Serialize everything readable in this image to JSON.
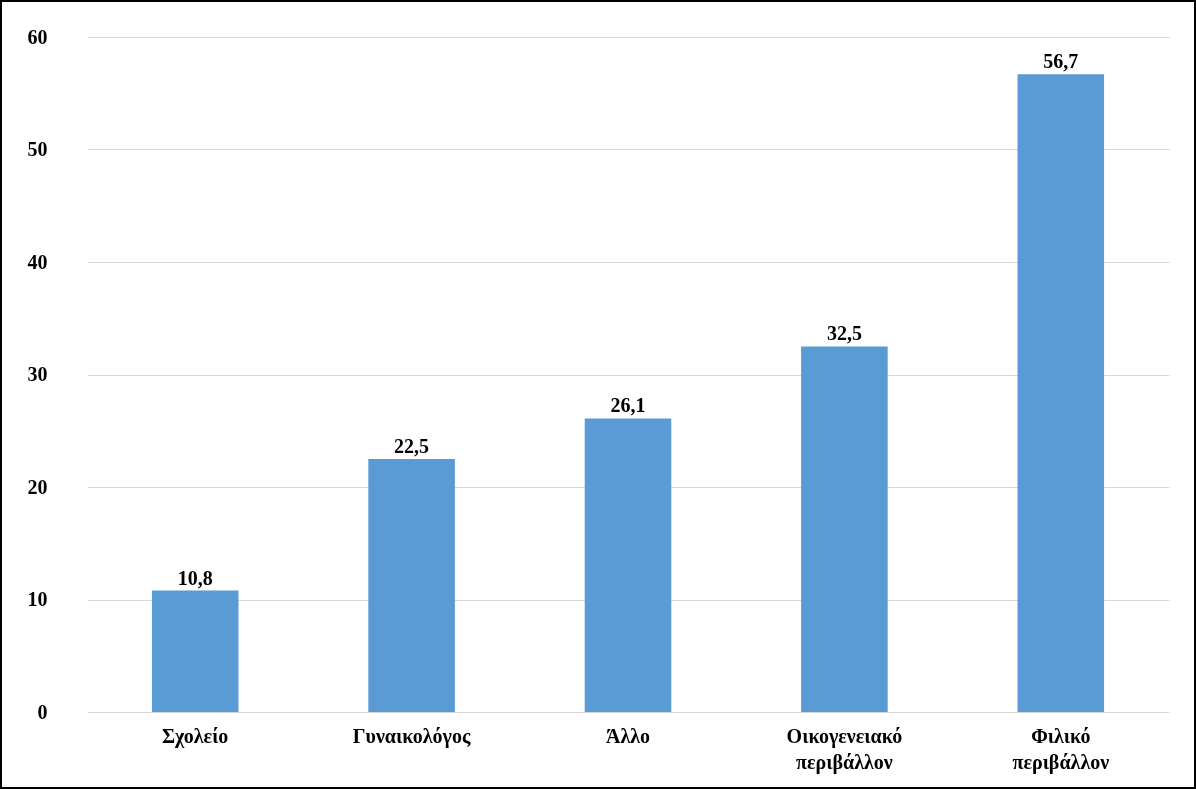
{
  "chart_data": {
    "type": "bar",
    "categories": [
      "Σχολείο",
      "Γυναικολόγος",
      "Άλλο",
      "Οικογενειακό περιβάλλον",
      "Φιλικό περιβάλλον"
    ],
    "values": [
      10.8,
      22.5,
      26.1,
      32.5,
      56.7
    ],
    "value_labels": [
      "10,8",
      "22,5",
      "26,1",
      "32,5",
      "56,7"
    ],
    "color": "#5b9bd5",
    "ylim": [
      0,
      60
    ],
    "yticks": [
      0,
      10,
      20,
      30,
      40,
      50,
      60
    ],
    "grid": "y"
  }
}
